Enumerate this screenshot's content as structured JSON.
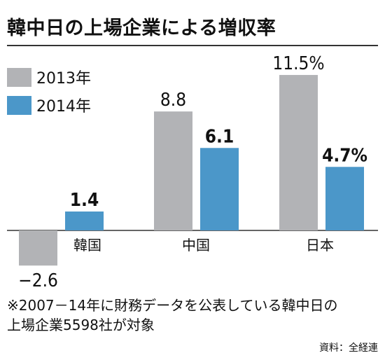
{
  "title": "韓中日の上場企業による増収率",
  "note_lines": [
    "※2007－14年に財務データを公表している韓中日の",
    "上場企業5598社が対象"
  ],
  "source": "資料：全経連",
  "chart_data": {
    "type": "bar",
    "categories": [
      "韓国",
      "中国",
      "日本"
    ],
    "series": [
      {
        "name": "2013年",
        "color": "#b2b3b6",
        "values": [
          -2.6,
          8.8,
          11.5
        ],
        "labels": [
          "−2.6",
          "8.8",
          "11.5%"
        ],
        "bold": false
      },
      {
        "name": "2014年",
        "color": "#4b97c9",
        "values": [
          1.4,
          6.1,
          4.7
        ],
        "labels": [
          "1.4",
          "6.1",
          "4.7%"
        ],
        "bold": true
      }
    ],
    "ylim": [
      -2.6,
      11.5
    ],
    "legend_position": "top-left",
    "grid": false
  }
}
